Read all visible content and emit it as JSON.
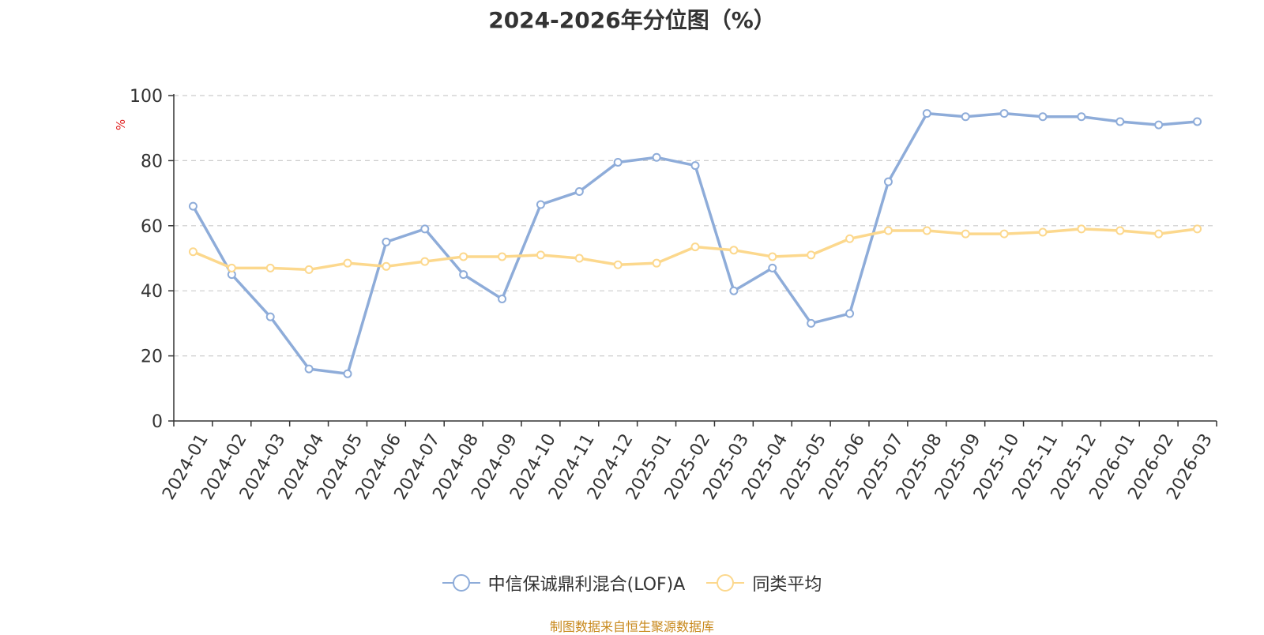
{
  "chart_data": {
    "type": "line",
    "title": "2024-2026年分位图（%）",
    "ylabel": "%",
    "ylim": [
      0,
      100
    ],
    "yticks": [
      0,
      20,
      40,
      60,
      80,
      100
    ],
    "grid": true,
    "legend_position": "bottom",
    "categories": [
      "2024-01",
      "2024-02",
      "2024-03",
      "2024-04",
      "2024-05",
      "2024-06",
      "2024-07",
      "2024-08",
      "2024-09",
      "2024-10",
      "2024-11",
      "2024-12",
      "2025-01",
      "2025-02",
      "2025-03",
      "2025-04",
      "2025-05",
      "2025-06",
      "2025-07",
      "2025-08",
      "2025-09",
      "2025-10",
      "2025-11",
      "2025-12",
      "2026-01",
      "2026-02",
      "2026-03"
    ],
    "series": [
      {
        "name": "中信保诚鼎利混合(LOF)A",
        "color": "#8eacd9",
        "values": [
          66,
          45,
          32,
          16,
          14.5,
          55,
          59,
          45,
          37.5,
          66.5,
          70.5,
          79.5,
          81,
          78.5,
          40,
          47,
          30,
          33,
          73.5,
          94.5,
          93.5,
          94.5,
          93.5,
          93.5,
          92,
          91,
          92
        ]
      },
      {
        "name": "同类平均",
        "color": "#fcd88d",
        "values": [
          52,
          47,
          47,
          46.5,
          48.5,
          47.5,
          49,
          50.5,
          50.5,
          51,
          50,
          48,
          48.5,
          53.5,
          52.5,
          50.5,
          51,
          56,
          58.5,
          58.5,
          57.5,
          57.5,
          58,
          59,
          58.5,
          57.5,
          59
        ]
      }
    ]
  },
  "source": "制图数据来自恒生聚源数据库"
}
